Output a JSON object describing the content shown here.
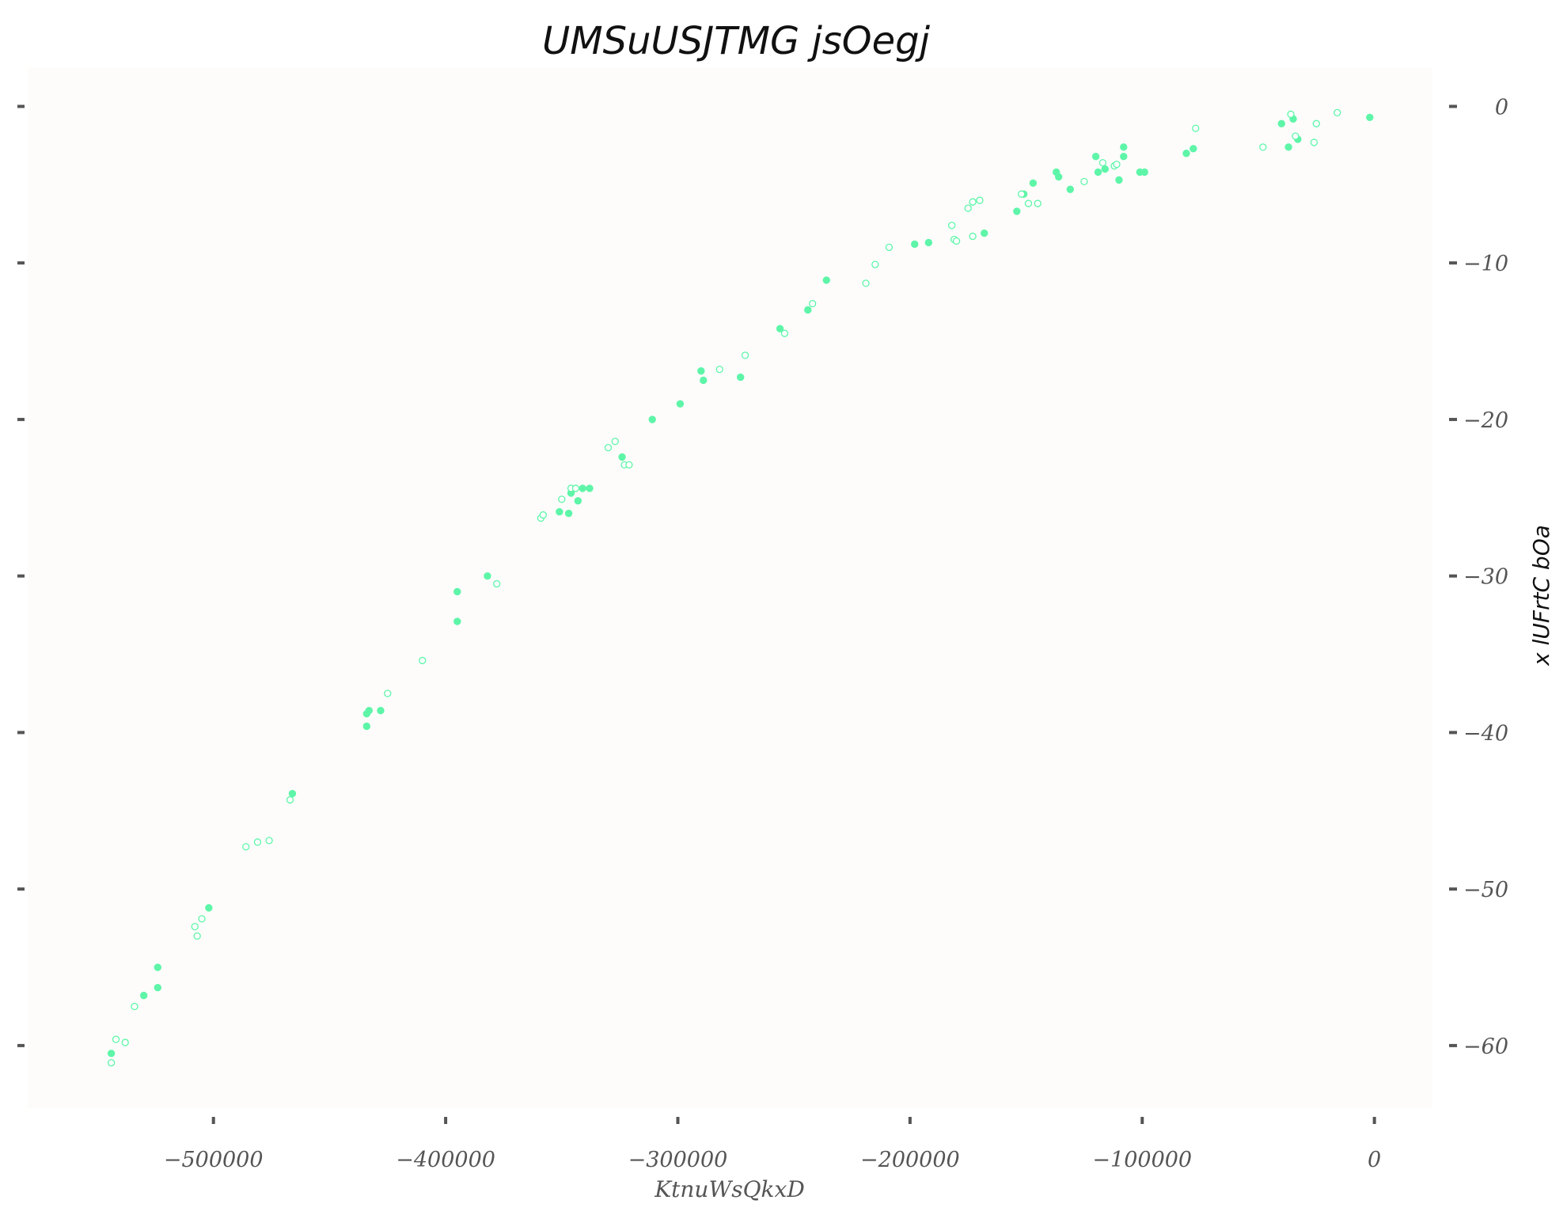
{
  "chart_data": {
    "type": "scatter",
    "title": "UMSuUSJTMG jsOegj",
    "xlabel": "KtnuWsQkxD",
    "ylabel": "x lUFrtC bOa",
    "xlim": [
      -580000,
      25000
    ],
    "ylim": [
      -64,
      2.5
    ],
    "xticks": [
      -500000,
      -400000,
      -300000,
      -200000,
      -100000,
      0
    ],
    "yticks": [
      0,
      -10,
      -20,
      -30,
      -40,
      -50,
      -60
    ],
    "x_tick_labels": [
      "−500000",
      "−400000",
      "−300000",
      "−200000",
      "−100000",
      "0"
    ],
    "y_tick_labels": [
      "0",
      "−10",
      "−20",
      "−30",
      "−40",
      "−50",
      "−60"
    ],
    "grid": false,
    "y_axis_side": "right",
    "colors": {
      "marker": "#5ef5a8",
      "background": "#fdfcfb",
      "ticks": "#555555"
    },
    "series": [
      {
        "marker": "filled",
        "points": [
          [
            -544000,
            -60.5
          ],
          [
            -524000,
            -56.3
          ],
          [
            -524000,
            -55.0
          ],
          [
            -530000,
            -56.8
          ],
          [
            -502000,
            -51.2
          ],
          [
            -466000,
            -43.9
          ],
          [
            -434000,
            -39.6
          ],
          [
            -434000,
            -38.8
          ],
          [
            -433000,
            -38.6
          ],
          [
            -428000,
            -38.6
          ],
          [
            -395000,
            -32.9
          ],
          [
            -395000,
            -31.0
          ],
          [
            -382000,
            -30.0
          ],
          [
            -351000,
            -25.9
          ],
          [
            -347000,
            -26.0
          ],
          [
            -346000,
            -24.7
          ],
          [
            -343000,
            -25.2
          ],
          [
            -341000,
            -24.4
          ],
          [
            -338000,
            -24.4
          ],
          [
            -324000,
            -22.4
          ],
          [
            -311000,
            -20.0
          ],
          [
            -299000,
            -19.0
          ],
          [
            -290000,
            -16.9
          ],
          [
            -289000,
            -17.5
          ],
          [
            -273000,
            -17.3
          ],
          [
            -256000,
            -14.2
          ],
          [
            -244000,
            -13.0
          ],
          [
            -236000,
            -11.1
          ],
          [
            -198000,
            -8.8
          ],
          [
            -192000,
            -8.7
          ],
          [
            -168000,
            -8.1
          ],
          [
            -154000,
            -6.7
          ],
          [
            -151000,
            -5.6
          ],
          [
            -147000,
            -4.9
          ],
          [
            -137000,
            -4.2
          ],
          [
            -136000,
            -4.5
          ],
          [
            -131000,
            -5.3
          ],
          [
            -120000,
            -3.2
          ],
          [
            -119000,
            -4.2
          ],
          [
            -116000,
            -4.0
          ],
          [
            -110000,
            -4.7
          ],
          [
            -108000,
            -3.2
          ],
          [
            -108000,
            -2.6
          ],
          [
            -101000,
            -4.2
          ],
          [
            -99000,
            -4.2
          ],
          [
            -81000,
            -3.0
          ],
          [
            -78000,
            -2.7
          ],
          [
            -40000,
            -1.1
          ],
          [
            -37000,
            -2.6
          ],
          [
            -35000,
            -0.8
          ],
          [
            -33000,
            -2.1
          ],
          [
            -2000,
            -0.7
          ]
        ]
      },
      {
        "marker": "hollow",
        "points": [
          [
            -544000,
            -61.1
          ],
          [
            -542000,
            -59.6
          ],
          [
            -538000,
            -59.8
          ],
          [
            -534000,
            -57.5
          ],
          [
            -508000,
            -52.4
          ],
          [
            -507000,
            -53.0
          ],
          [
            -505000,
            -51.9
          ],
          [
            -486000,
            -47.3
          ],
          [
            -481000,
            -47.0
          ],
          [
            -476000,
            -46.9
          ],
          [
            -467000,
            -44.3
          ],
          [
            -425000,
            -37.5
          ],
          [
            -410000,
            -35.4
          ],
          [
            -378000,
            -30.5
          ],
          [
            -359000,
            -26.3
          ],
          [
            -358000,
            -26.1
          ],
          [
            -350000,
            -25.1
          ],
          [
            -346000,
            -24.4
          ],
          [
            -344000,
            -24.4
          ],
          [
            -330000,
            -21.8
          ],
          [
            -327000,
            -21.4
          ],
          [
            -323000,
            -22.9
          ],
          [
            -321000,
            -22.9
          ],
          [
            -282000,
            -16.8
          ],
          [
            -271000,
            -15.9
          ],
          [
            -254000,
            -14.5
          ],
          [
            -242000,
            -12.6
          ],
          [
            -219000,
            -11.3
          ],
          [
            -215000,
            -10.1
          ],
          [
            -209000,
            -9.0
          ],
          [
            -182000,
            -7.6
          ],
          [
            -181000,
            -8.5
          ],
          [
            -180000,
            -8.6
          ],
          [
            -175000,
            -6.5
          ],
          [
            -173000,
            -6.1
          ],
          [
            -173000,
            -8.3
          ],
          [
            -170000,
            -6.0
          ],
          [
            -152000,
            -5.6
          ],
          [
            -149000,
            -6.2
          ],
          [
            -145000,
            -6.2
          ],
          [
            -125000,
            -4.8
          ],
          [
            -117000,
            -3.6
          ],
          [
            -112000,
            -3.8
          ],
          [
            -111000,
            -3.7
          ],
          [
            -77000,
            -1.4
          ],
          [
            -48000,
            -2.6
          ],
          [
            -36000,
            -0.5
          ],
          [
            -34000,
            -1.9
          ],
          [
            -26000,
            -2.3
          ],
          [
            -25000,
            -1.1
          ],
          [
            -16000,
            -0.4
          ]
        ]
      }
    ]
  }
}
